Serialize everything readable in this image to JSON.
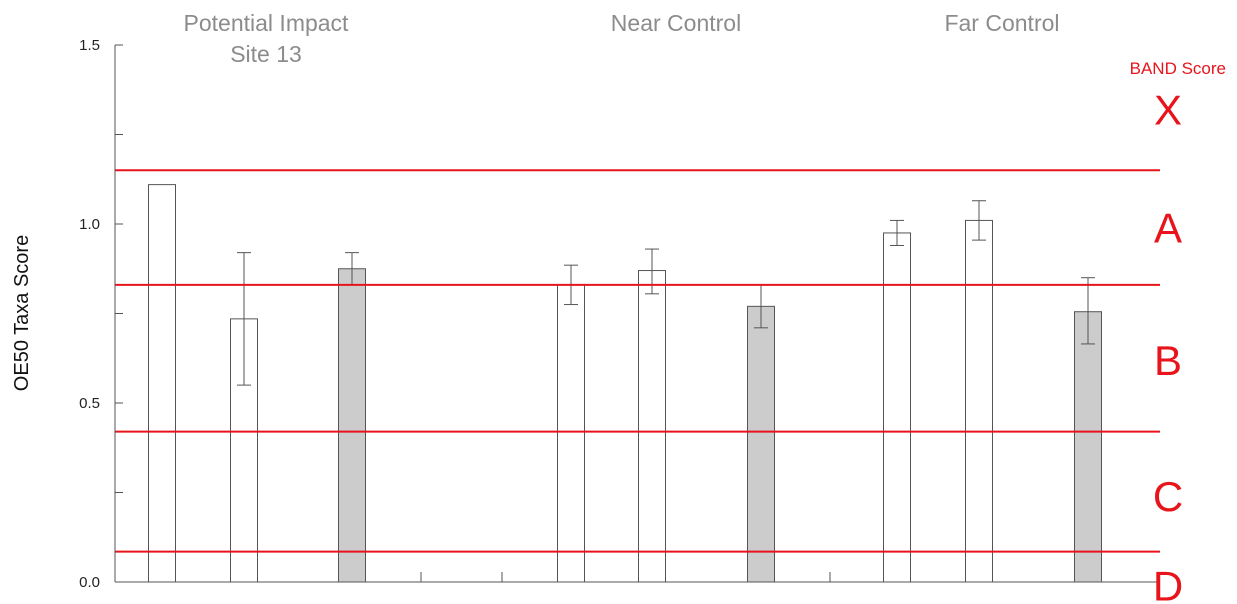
{
  "chart_data": {
    "type": "bar",
    "ylabel": "OE50 Taxa Score",
    "ylim": [
      0,
      1.5
    ],
    "y_ticks": [
      "0.0",
      "0.5",
      "1.0",
      "1.5"
    ],
    "y_tick_values": [
      0,
      0.5,
      1.0,
      1.5
    ],
    "grid": false,
    "groups": [
      {
        "label_lines": [
          "Potential Impact",
          "Site 13"
        ],
        "bars": [
          {
            "value": 1.11,
            "err_low": null,
            "err_high": null,
            "filled": false
          },
          {
            "value": 0.735,
            "err_low": 0.55,
            "err_high": 0.92,
            "filled": false
          },
          {
            "value": 0.875,
            "err_low": 0.83,
            "err_high": 0.92,
            "filled": true
          }
        ]
      },
      {
        "label_lines": [
          "Near Control"
        ],
        "bars": [
          {
            "value": 0.83,
            "err_low": 0.775,
            "err_high": 0.885,
            "filled": false
          },
          {
            "value": 0.87,
            "err_low": 0.805,
            "err_high": 0.93,
            "filled": false
          },
          {
            "value": 0.77,
            "err_low": 0.71,
            "err_high": 0.83,
            "filled": true
          }
        ]
      },
      {
        "label_lines": [
          "Far Control"
        ],
        "bars": [
          {
            "value": 0.975,
            "err_low": 0.94,
            "err_high": 1.01,
            "filled": false
          },
          {
            "value": 1.01,
            "err_low": 0.955,
            "err_high": 1.065,
            "filled": false
          },
          {
            "value": 0.755,
            "err_low": 0.665,
            "err_high": 0.85,
            "filled": true
          }
        ]
      }
    ],
    "bands": {
      "title": "BAND Score",
      "thresholds": [
        1.15,
        0.83,
        0.42,
        0.085
      ],
      "labels": [
        {
          "label": "X",
          "value": 1.32
        },
        {
          "label": "A",
          "value": 0.99
        },
        {
          "label": "B",
          "value": 0.62
        },
        {
          "label": "C",
          "value": 0.24
        },
        {
          "label": "D",
          "value": -0.01
        }
      ]
    },
    "colors": {
      "band_line": "#e8141c",
      "bar_filled": "#cccccc",
      "bar_empty": "#ffffff",
      "bar_stroke": "#555555",
      "axis": "#555555",
      "group_label": "#8c8c8c"
    }
  }
}
